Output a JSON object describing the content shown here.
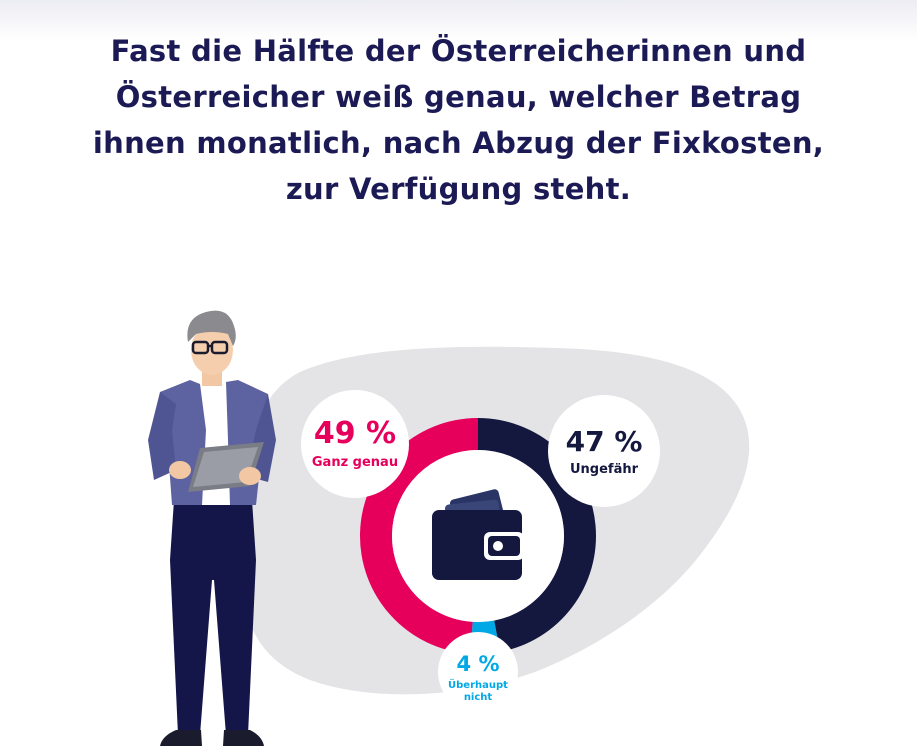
{
  "headline": {
    "lines": [
      "Fast die Hälfte der Österreicherinnen und",
      "Österreicher weiß genau, welcher Betrag",
      "ihnen monatlich, nach Abzug der Fixkosten,",
      "zur Verfügung steht."
    ]
  },
  "chart_data": {
    "type": "pie",
    "donut": true,
    "title": "Fast die Hälfte der Österreicherinnen und Österreicher weiß genau, welcher Betrag ihnen monatlich, nach Abzug der Fixkosten, zur Verfügung steht.",
    "slices": [
      {
        "label": "Ganz genau",
        "value": 49,
        "display": "49 %",
        "color": "#e6005c"
      },
      {
        "label": "Ungefähr",
        "value": 47,
        "display": "47 %",
        "color": "#14183f"
      },
      {
        "label": "Überhaupt nicht",
        "label_lines": [
          "Überhaupt",
          "nicht"
        ],
        "value": 4,
        "display": "4 %",
        "color": "#00a8e6"
      }
    ],
    "unit": "%"
  },
  "icons": {
    "center": "wallet-icon",
    "illustration": "person-with-tablet-illustration"
  },
  "colors": {
    "headline": "#1b1a55",
    "blob": "#e4e4e6"
  }
}
